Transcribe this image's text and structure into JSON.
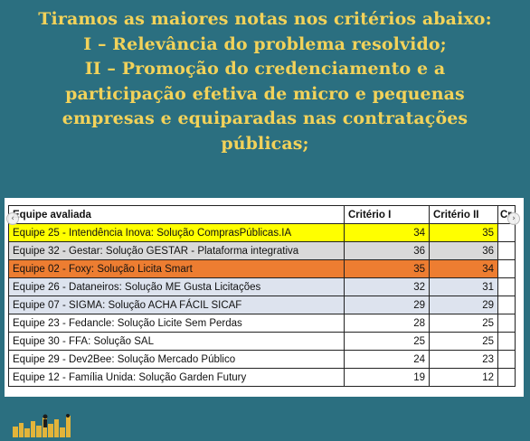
{
  "heading": {
    "lines": [
      "Tiramos as maiores notas nos critérios abaixo:",
      "I – Relevância do problema resolvido;",
      "II – Promoção do credenciamento e a",
      "participação efetiva de micro e pequenas",
      "empresas e equiparadas nas contratações",
      "públicas;"
    ]
  },
  "table": {
    "headers": [
      "Equipe avaliada",
      "Critério I",
      "Critério II",
      "Cr"
    ],
    "rows": [
      {
        "team": "Equipe 25 - Intendência Inova: Solução ComprasPúblicas.IA",
        "c1": "34",
        "c2": "35",
        "highlight": "yellow"
      },
      {
        "team": "Equipe 32 - Gestar: Solução GESTAR - Plataforma integrativa",
        "c1": "36",
        "c2": "36",
        "highlight": "gray"
      },
      {
        "team": "Equipe 02 - Foxy: Solução Licita Smart",
        "c1": "35",
        "c2": "34",
        "highlight": "orange"
      },
      {
        "team": "Equipe 26 - Dataneiros: Solução ME Gusta Licitações",
        "c1": "32",
        "c2": "31",
        "highlight": "blue"
      },
      {
        "team": "Equipe 07 - SIGMA: Solução ACHA FÁCIL SICAF",
        "c1": "29",
        "c2": "29",
        "highlight": "blue"
      },
      {
        "team": "Equipe 23 - Fedancle: Solução Licite Sem Perdas",
        "c1": "28",
        "c2": "25",
        "highlight": "none"
      },
      {
        "team": "Equipe 30 - FFA: Solução SAL",
        "c1": "25",
        "c2": "25",
        "highlight": "none"
      },
      {
        "team": "Equipe 29 - Dev2Bee: Solução Mercado Público",
        "c1": "24",
        "c2": "23",
        "highlight": "none"
      },
      {
        "team": "Equipe 12 - Família Unida: Solução Garden Futury",
        "c1": "19",
        "c2": "12",
        "highlight": "none"
      }
    ]
  },
  "colors": {
    "background": "#2b6f80",
    "heading": "#f2d25a",
    "yellow": "#ffff00",
    "gray": "#d9d9d9",
    "orange": "#ed7d31",
    "blue": "#dde3ee",
    "logo": "#e3b43a"
  },
  "icons": {
    "carousel_left": "chevron-left-icon",
    "carousel_right": "chevron-right-icon",
    "logo": "skyline-logo-icon"
  }
}
